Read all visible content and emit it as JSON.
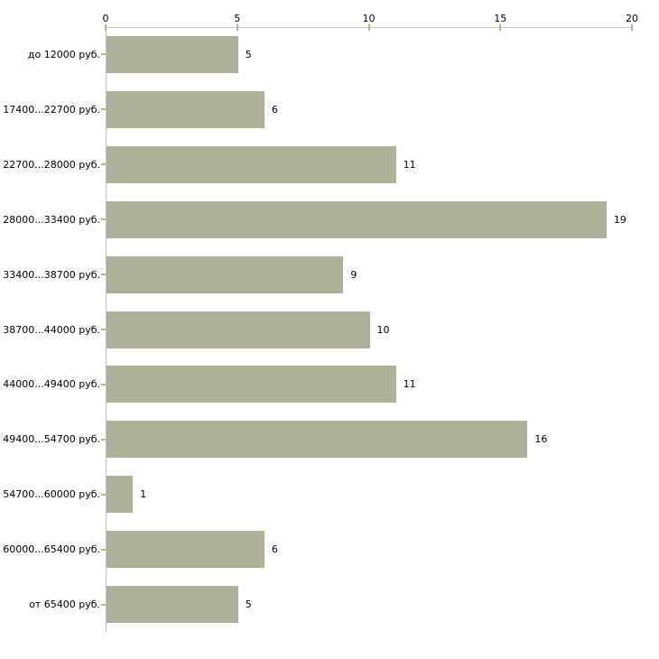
{
  "chart_data": {
    "type": "bar",
    "orientation": "horizontal",
    "title": "",
    "xlabel": "",
    "ylabel": "",
    "categories": [
      "до 12000 руб.",
      "17400...22700 руб.",
      "22700...28000 руб.",
      "28000...33400 руб.",
      "33400...38700 руб.",
      "38700...44000 руб.",
      "44000...49400 руб.",
      "49400...54700 руб.",
      "54700...60000 руб.",
      "60000...65400 руб.",
      "от 65400 руб."
    ],
    "values": [
      5,
      6,
      11,
      19,
      9,
      10,
      11,
      16,
      1,
      6,
      5
    ],
    "data_labels": [
      "5",
      "6",
      "11",
      "19",
      "9",
      "10",
      "11",
      "16",
      "1",
      "6",
      "5"
    ],
    "value_axis": {
      "position": "top",
      "min": 0,
      "max": 20,
      "ticks": [
        0,
        5,
        10,
        15,
        20
      ],
      "tick_labels": [
        "0",
        "5",
        "10",
        "15",
        "20"
      ]
    },
    "grid": false,
    "legend": "none",
    "colors": {
      "bar_fill": "#acb299",
      "axis_line": "#c0c0c0",
      "tick_mark": "#b2b287",
      "text": "#000000",
      "background": "#ffffff"
    }
  }
}
